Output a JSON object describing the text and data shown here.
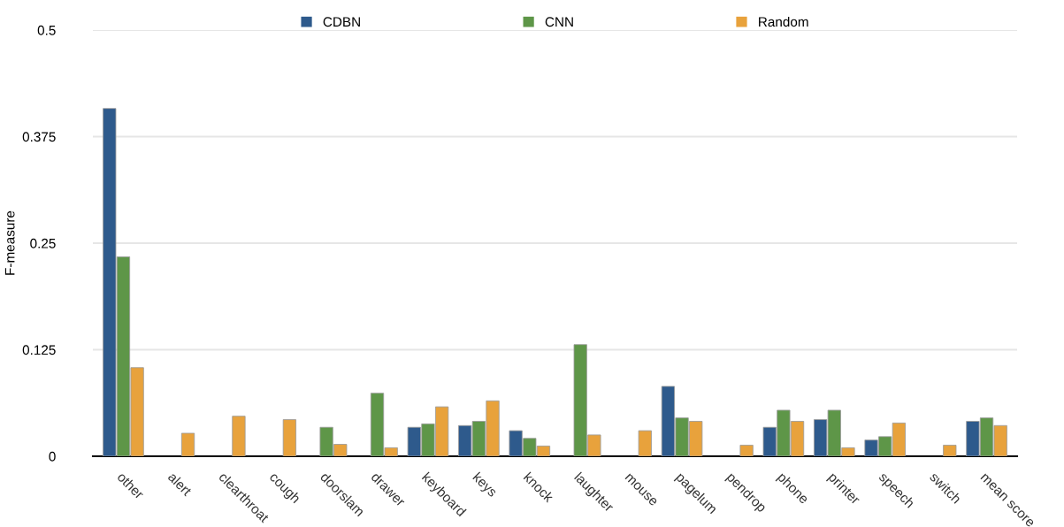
{
  "chart_data": {
    "type": "bar",
    "ylabel": "F-measure",
    "categories": [
      "other",
      "alert",
      "clearthroat",
      "cough",
      "doorslam",
      "drawer",
      "keyboard",
      "keys",
      "knock",
      "laughter",
      "mouse",
      "pagelum",
      "pendrop",
      "phone",
      "printer",
      "speech",
      "switch",
      "mean score"
    ],
    "series": [
      {
        "name": "CDBN",
        "color": "#2e5a8c",
        "values": [
          0.408,
          null,
          null,
          null,
          null,
          null,
          0.034,
          0.036,
          0.03,
          null,
          null,
          0.082,
          null,
          0.034,
          0.043,
          0.019,
          null,
          0.041
        ]
      },
      {
        "name": "CNN",
        "color": "#5e9648",
        "values": [
          0.234,
          null,
          null,
          null,
          0.034,
          0.074,
          0.038,
          0.041,
          0.021,
          0.131,
          null,
          0.045,
          null,
          0.054,
          0.054,
          0.023,
          null,
          0.045
        ]
      },
      {
        "name": "Random",
        "color": "#e8a23c",
        "values": [
          0.104,
          0.027,
          0.047,
          0.043,
          0.014,
          0.01,
          0.058,
          0.065,
          0.012,
          0.025,
          0.03,
          0.041,
          0.013,
          0.041,
          0.01,
          0.039,
          0.013,
          0.036
        ]
      }
    ],
    "ylim": [
      0,
      0.5
    ],
    "yticks": [
      0,
      0.125,
      0.25,
      0.375,
      0.5
    ],
    "grid": "y",
    "legend": "top"
  }
}
